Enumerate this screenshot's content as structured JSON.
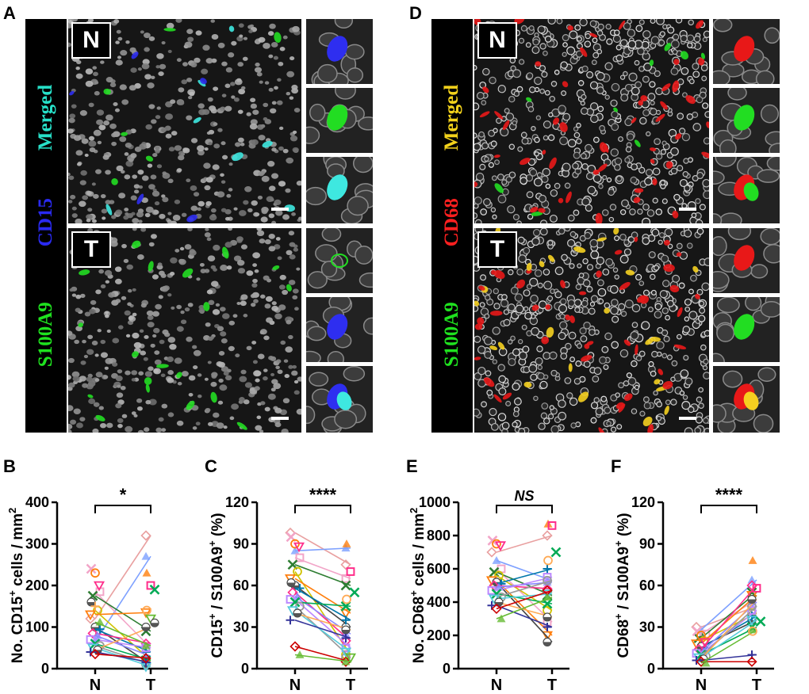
{
  "panels": {
    "A": {
      "label": "A",
      "stain_words": [
        {
          "text": "S100A9",
          "color": "#1fe21f"
        },
        {
          "text": "CD15",
          "color": "#2a2af0"
        },
        {
          "text": "Merged",
          "color": "#27e0c8"
        }
      ],
      "rows": [
        {
          "tag": "N"
        },
        {
          "tag": "T"
        }
      ]
    },
    "D": {
      "label": "D",
      "stain_words": [
        {
          "text": "S100A9",
          "color": "#1fe21f"
        },
        {
          "text": "CD68",
          "color": "#ff2020"
        },
        {
          "text": "Merged",
          "color": "#f2d21b"
        }
      ],
      "rows": [
        {
          "tag": "N"
        },
        {
          "tag": "T"
        }
      ]
    }
  },
  "colors": {
    "nuclei": "#c8c8c8",
    "cd15": "#2e2ef0",
    "s100a9": "#22dd22",
    "cd68": "#e81818",
    "merged_cyan": "#3ee8e0",
    "merged_yellow": "#f5d020"
  },
  "chart_data": [
    {
      "panel": "B",
      "type": "line",
      "ylabel": "No. CD15+ cells / mm2",
      "ylabel_parts": [
        "No. CD15",
        "+",
        " cells / mm",
        "2"
      ],
      "ylim": [
        0,
        400
      ],
      "yticks": [
        "0",
        "100",
        "200",
        "300",
        "400"
      ],
      "categories": [
        "N",
        "T"
      ],
      "significance": "*",
      "pairs": [
        [
          120,
          320
        ],
        [
          65,
          270
        ],
        [
          185,
          50
        ],
        [
          175,
          90
        ],
        [
          140,
          20
        ],
        [
          130,
          135
        ],
        [
          100,
          10
        ],
        [
          95,
          40
        ],
        [
          85,
          60
        ],
        [
          80,
          30
        ],
        [
          70,
          50
        ],
        [
          60,
          20
        ],
        [
          55,
          10
        ],
        [
          50,
          5
        ],
        [
          45,
          100
        ],
        [
          40,
          15
        ],
        [
          35,
          25
        ],
        [
          112,
          55
        ]
      ],
      "N_extra": [
        240,
        230,
        200,
        160,
        150
      ],
      "T_extra": [
        230,
        200,
        190,
        140,
        120,
        110
      ]
    },
    {
      "panel": "C",
      "type": "line",
      "ylabel": "CD15+ / S100A9+ (%)",
      "ylabel_parts": [
        "CD15",
        "+",
        " / S100A9",
        "+",
        " (%)"
      ],
      "ylim": [
        0,
        120
      ],
      "yticks": [
        "0",
        "30",
        "60",
        "90",
        "120"
      ],
      "categories": [
        "N",
        "T"
      ],
      "significance": "****",
      "pairs": [
        [
          98,
          75
        ],
        [
          85,
          87
        ],
        [
          80,
          65
        ],
        [
          75,
          60
        ],
        [
          70,
          10
        ],
        [
          65,
          40
        ],
        [
          60,
          30
        ],
        [
          58,
          35
        ],
        [
          55,
          20
        ],
        [
          52,
          25
        ],
        [
          50,
          15
        ],
        [
          48,
          45
        ],
        [
          45,
          8
        ],
        [
          42,
          12
        ],
        [
          40,
          28
        ],
        [
          35,
          22
        ],
        [
          16,
          5
        ],
        [
          10,
          5
        ]
      ],
      "N_extra": [
        95,
        90,
        88,
        62
      ],
      "T_extra": [
        90,
        70,
        55,
        50,
        8
      ]
    },
    {
      "panel": "E",
      "type": "line",
      "ylabel": "No. CD68+ cells / mm2",
      "ylabel_parts": [
        "No. CD68",
        "+",
        " cells / mm",
        "2"
      ],
      "ylim": [
        0,
        1000
      ],
      "yticks": [
        "0",
        "200",
        "400",
        "600",
        "800",
        "1000"
      ],
      "categories": [
        "N",
        "T"
      ],
      "significance": "NS",
      "pairs": [
        [
          700,
          800
        ],
        [
          650,
          530
        ],
        [
          600,
          280
        ],
        [
          580,
          440
        ],
        [
          560,
          350
        ],
        [
          530,
          200
        ],
        [
          520,
          160
        ],
        [
          510,
          600
        ],
        [
          500,
          480
        ],
        [
          490,
          520
        ],
        [
          470,
          550
        ],
        [
          450,
          390
        ],
        [
          430,
          530
        ],
        [
          420,
          450
        ],
        [
          400,
          310
        ],
        [
          380,
          250
        ],
        [
          360,
          470
        ],
        [
          300,
          430
        ]
      ],
      "N_extra": [
        770,
        750,
        740
      ],
      "T_extra": [
        870,
        860,
        700,
        650
      ]
    },
    {
      "panel": "F",
      "type": "line",
      "ylabel": "CD68+ / S100A9+ (%)",
      "ylabel_parts": [
        "CD68",
        "+",
        " / S100A9",
        "+",
        " (%)"
      ],
      "ylim": [
        0,
        120
      ],
      "yticks": [
        "0",
        "30",
        "60",
        "90",
        "120"
      ],
      "categories": [
        "N",
        "T"
      ],
      "significance": "****",
      "pairs": [
        [
          30,
          45
        ],
        [
          28,
          64
        ],
        [
          25,
          50
        ],
        [
          22,
          55
        ],
        [
          20,
          40
        ],
        [
          18,
          53
        ],
        [
          16,
          35
        ],
        [
          15,
          38
        ],
        [
          14,
          60
        ],
        [
          12,
          48
        ],
        [
          11,
          42
        ],
        [
          10,
          30
        ],
        [
          9,
          45
        ],
        [
          8,
          35
        ],
        [
          7,
          50
        ],
        [
          6,
          10
        ],
        [
          5,
          5
        ],
        [
          4,
          28
        ]
      ],
      "N_extra": [
        27,
        24,
        19
      ],
      "T_extra": [
        78,
        58,
        34,
        27
      ]
    }
  ]
}
